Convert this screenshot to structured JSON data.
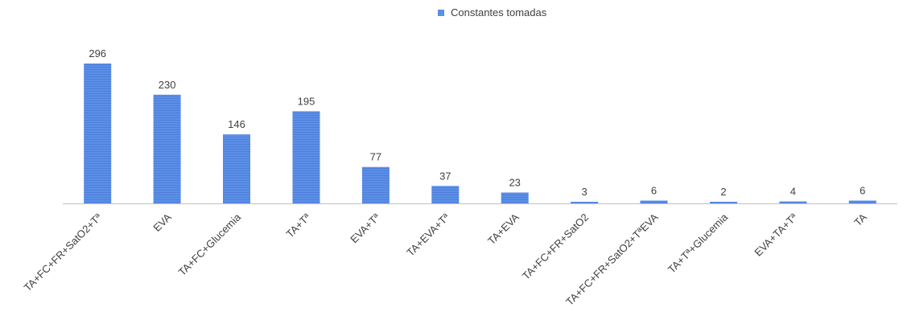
{
  "chart_data": {
    "type": "bar",
    "categories": [
      "TA+FC+FR+SatO2+Tª",
      "EVA",
      "TA+FC+Glucemia",
      "TA+Tª",
      "EVA+Tª",
      "TA+EVA+Tª",
      "TA+EVA",
      "TA+FC+FR+SatO2",
      "TA+FC+FR+SatO2+TªEVA",
      "TA+Tª+Glucemia",
      "EVA+TA+Tª",
      "TA"
    ],
    "series": [
      {
        "name": "Constantes tomadas",
        "values": [
          296,
          230,
          146,
          195,
          77,
          37,
          23,
          3,
          6,
          2,
          4,
          6
        ]
      }
    ],
    "data_labels": [
      "296",
      "230",
      "146",
      "195",
      "77",
      "37",
      "23",
      "3",
      "6",
      "2",
      "4",
      "6"
    ],
    "ylim": [
      0,
      296
    ],
    "grid": false,
    "legend_position": "top",
    "colors": {
      "bar": "#5b8fe8",
      "bar_stripe": "#4f7fd8",
      "axis": "#bfbfbf",
      "text": "#404040"
    }
  }
}
